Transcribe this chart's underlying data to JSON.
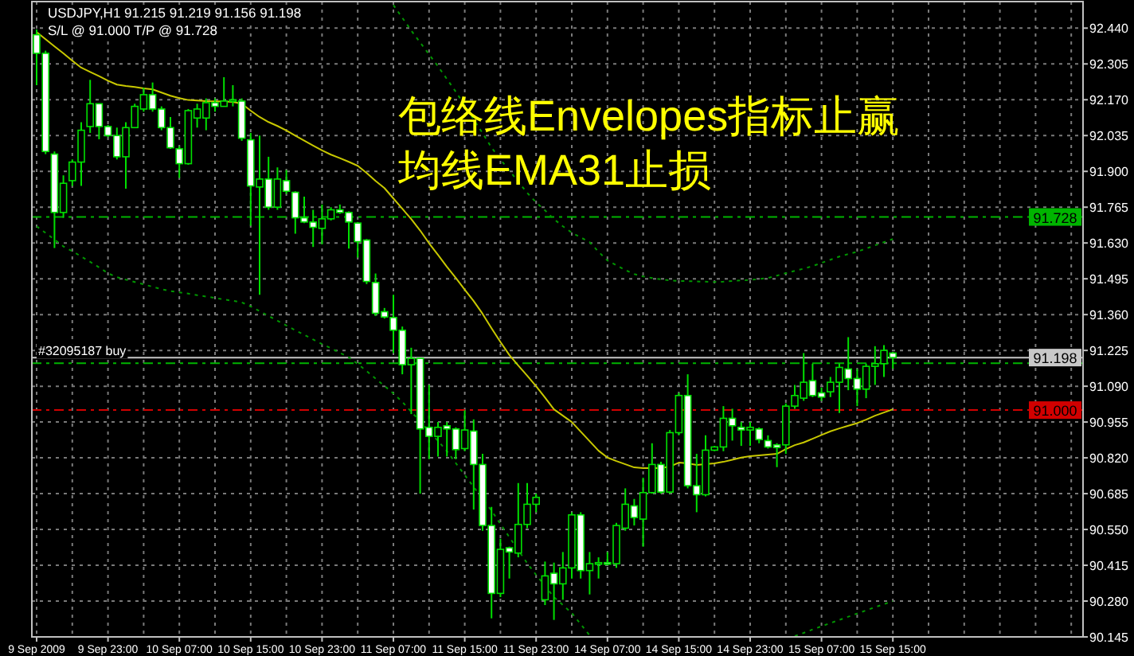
{
  "chart_data": {
    "type": "candlestick",
    "title": "USDJPY,H1  91.215 91.219 91.156 91.198",
    "subtitle": "S/L @ 91.000   T/P @ 91.728",
    "annotations": [
      "包络线Envelopes指标止赢",
      "均线EMA31止损",
      {
        "text": "#32095187 buy",
        "x": "9 Sep 2009",
        "y": 91.177
      }
    ],
    "categories": [
      "9 Sep 2009",
      null,
      null,
      null,
      null,
      null,
      null,
      null,
      "9 Sep 23:00",
      null,
      null,
      null,
      null,
      null,
      null,
      null,
      "10 Sep 07:00",
      null,
      null,
      null,
      null,
      null,
      null,
      null,
      "10 Sep 15:00",
      null,
      null,
      null,
      null,
      null,
      null,
      null,
      "10 Sep 23:00",
      null,
      null,
      null,
      null,
      null,
      null,
      null,
      "11 Sep 07:00",
      null,
      null,
      null,
      null,
      null,
      null,
      null,
      "11 Sep 15:00",
      null,
      null,
      null,
      null,
      null,
      null,
      null,
      "11 Sep 23:00",
      null,
      null,
      null,
      null,
      null,
      null,
      null,
      "14 Sep 07:00",
      null,
      null,
      null,
      null,
      null,
      null,
      null,
      "14 Sep 15:00",
      null,
      null,
      null,
      null,
      null,
      null,
      null,
      "14 Sep 23:00",
      null,
      null,
      null,
      null,
      null,
      null,
      null,
      "15 Sep 07:00",
      null,
      null,
      null,
      null,
      null,
      null,
      null,
      "15 Sep 15:00"
    ],
    "ohlc": [
      [
        92.415,
        92.435,
        92.225,
        92.345
      ],
      [
        92.345,
        92.355,
        91.965,
        91.975
      ],
      [
        91.965,
        91.975,
        91.611,
        91.745
      ],
      [
        91.745,
        91.885,
        91.725,
        91.855
      ],
      [
        91.865,
        91.945,
        91.845,
        91.935
      ],
      [
        91.935,
        92.085,
        91.845,
        92.055
      ],
      [
        92.069,
        92.245,
        92.045,
        92.155
      ],
      [
        92.155,
        92.155,
        92.021,
        92.069
      ],
      [
        92.069,
        92.075,
        92.029,
        92.035
      ],
      [
        92.035,
        92.065,
        91.945,
        91.955
      ],
      [
        91.955,
        92.085,
        91.835,
        92.065
      ],
      [
        92.065,
        92.155,
        92.065,
        92.145
      ],
      [
        92.135,
        92.215,
        92.125,
        92.189
      ],
      [
        92.189,
        92.235,
        92.125,
        92.135
      ],
      [
        92.135,
        92.145,
        92.055,
        92.065
      ],
      [
        92.065,
        92.105,
        91.985,
        91.989
      ],
      [
        91.985,
        91.995,
        91.875,
        91.929
      ],
      [
        91.929,
        92.135,
        91.925,
        92.129
      ],
      [
        92.101,
        92.155,
        92.065,
        92.135
      ],
      [
        92.101,
        92.175,
        92.055,
        92.159
      ],
      [
        92.159,
        92.175,
        92.125,
        92.145
      ],
      [
        92.145,
        92.255,
        92.145,
        92.165
      ],
      [
        92.165,
        92.225,
        92.145,
        92.17
      ],
      [
        92.165,
        92.175,
        92.015,
        92.025
      ],
      [
        92.019,
        92.045,
        91.695,
        91.845
      ],
      [
        91.841,
        92.035,
        91.435,
        91.871
      ],
      [
        91.871,
        91.955,
        91.755,
        91.765
      ],
      [
        91.765,
        91.915,
        91.755,
        91.871
      ],
      [
        91.865,
        91.905,
        91.815,
        91.825
      ],
      [
        91.821,
        91.825,
        91.665,
        91.725
      ],
      [
        91.725,
        91.805,
        91.705,
        91.709
      ],
      [
        91.709,
        91.755,
        91.615,
        91.689
      ],
      [
        91.685,
        91.775,
        91.625,
        91.721
      ],
      [
        91.721,
        91.765,
        91.715,
        91.755
      ],
      [
        91.755,
        91.775,
        91.74,
        91.745
      ],
      [
        91.745,
        91.749,
        91.609,
        91.709
      ],
      [
        91.705,
        91.709,
        91.575,
        91.635
      ],
      [
        91.641,
        91.645,
        91.475,
        91.485
      ],
      [
        91.481,
        91.515,
        91.355,
        91.365
      ],
      [
        91.371,
        91.385,
        91.345,
        91.351
      ],
      [
        91.349,
        91.435,
        91.215,
        91.301
      ],
      [
        91.301,
        91.315,
        91.135,
        91.171
      ],
      [
        91.171,
        91.235,
        90.985,
        91.195
      ],
      [
        91.195,
        91.195,
        90.685,
        90.929
      ],
      [
        90.935,
        91.095,
        90.815,
        90.901
      ],
      [
        90.901,
        90.955,
        90.825,
        90.935
      ],
      [
        90.941,
        90.955,
        90.825,
        90.929
      ],
      [
        90.929,
        90.935,
        90.815,
        90.851
      ],
      [
        90.855,
        90.999,
        90.845,
        90.925
      ],
      [
        90.921,
        90.965,
        90.625,
        90.795
      ],
      [
        90.795,
        90.835,
        90.545,
        90.565
      ],
      [
        90.565,
        90.635,
        90.215,
        90.309
      ],
      [
        90.309,
        90.515,
        90.295,
        90.475
      ],
      [
        90.481,
        90.485,
        90.365,
        90.465
      ],
      [
        90.461,
        90.725,
        90.445,
        90.569
      ],
      [
        90.569,
        90.725,
        90.555,
        90.645
      ],
      [
        90.645,
        90.685,
        90.615,
        90.671
      ],
      [
        90.285,
        90.429,
        90.265,
        90.375
      ],
      [
        90.385,
        90.425,
        90.209,
        90.345
      ],
      [
        90.345,
        90.465,
        90.285,
        90.405
      ],
      [
        90.405,
        90.615,
        90.365,
        90.605
      ],
      [
        90.605,
        90.615,
        90.365,
        90.395
      ],
      [
        90.395,
        90.465,
        90.305,
        90.421
      ],
      [
        90.421,
        90.445,
        90.365,
        90.425
      ],
      [
        90.425,
        90.465,
        90.415,
        90.421
      ],
      [
        90.421,
        90.575,
        90.405,
        90.565
      ],
      [
        90.555,
        90.705,
        90.545,
        90.645
      ],
      [
        90.639,
        90.665,
        90.565,
        90.595
      ],
      [
        90.589,
        90.745,
        90.485,
        90.689
      ],
      [
        90.689,
        90.875,
        90.685,
        90.795
      ],
      [
        90.795,
        90.805,
        90.685,
        90.691
      ],
      [
        90.691,
        90.925,
        90.685,
        90.915
      ],
      [
        90.915,
        91.065,
        90.905,
        91.055
      ],
      [
        91.055,
        91.135,
        90.705,
        90.715
      ],
      [
        90.715,
        90.835,
        90.615,
        90.681
      ],
      [
        90.681,
        90.905,
        90.675,
        90.849
      ],
      [
        90.849,
        90.865,
        90.845,
        90.861
      ],
      [
        90.861,
        91.015,
        90.845,
        90.969
      ],
      [
        90.969,
        91.005,
        90.885,
        90.941
      ],
      [
        90.935,
        90.955,
        90.865,
        90.925
      ],
      [
        90.925,
        90.955,
        90.865,
        90.935
      ],
      [
        90.929,
        90.935,
        90.875,
        90.889
      ],
      [
        90.885,
        90.905,
        90.855,
        90.861
      ],
      [
        90.869,
        90.875,
        90.785,
        90.859
      ],
      [
        90.869,
        91.025,
        90.835,
        91.015
      ],
      [
        91.015,
        91.095,
        91.005,
        91.055
      ],
      [
        91.045,
        91.215,
        91.035,
        91.105
      ],
      [
        91.111,
        91.175,
        91.049,
        91.055
      ],
      [
        91.065,
        91.085,
        91.035,
        91.049
      ],
      [
        91.069,
        91.125,
        91.049,
        91.105
      ],
      [
        91.105,
        91.175,
        90.989,
        91.161
      ],
      [
        91.155,
        91.275,
        91.075,
        91.119
      ],
      [
        91.119,
        91.155,
        91.015,
        91.079
      ],
      [
        91.079,
        91.175,
        91.045,
        91.165
      ],
      [
        91.165,
        91.241,
        91.095,
        91.175
      ],
      [
        91.175,
        91.245,
        91.125,
        91.225
      ],
      [
        91.215,
        91.219,
        91.156,
        91.198
      ]
    ],
    "series": [
      {
        "type": "line",
        "color": "#c8c800",
        "line_style": "solid",
        "values": [
          92.425,
          92.398,
          92.371,
          92.345,
          92.317,
          92.291,
          92.275,
          92.259,
          92.242,
          92.227,
          92.222,
          92.218,
          92.213,
          92.209,
          92.197,
          92.185,
          92.176,
          92.169,
          92.167,
          92.165,
          92.164,
          92.163,
          92.162,
          92.155,
          92.129,
          92.105,
          92.086,
          92.071,
          92.054,
          92.035,
          92.016,
          91.997,
          91.979,
          91.963,
          91.95,
          91.936,
          91.921,
          91.894,
          91.864,
          91.837,
          91.798,
          91.759,
          91.72,
          91.677,
          91.629,
          91.585,
          91.54,
          91.498,
          91.454,
          91.411,
          91.363,
          91.309,
          91.257,
          91.208,
          91.168,
          91.13,
          91.09,
          91.047,
          91.003,
          90.979,
          90.955,
          90.919,
          90.883,
          90.847,
          90.821,
          90.808,
          90.796,
          90.784,
          90.781,
          90.781,
          90.781,
          90.787,
          90.802,
          90.799,
          90.793,
          90.796,
          90.799,
          90.805,
          90.813,
          90.821,
          90.826,
          90.829,
          90.832,
          90.835,
          90.853,
          90.868,
          90.878,
          90.892,
          90.906,
          90.92,
          90.931,
          90.941,
          90.951,
          90.964,
          90.979,
          90.991,
          91.003
        ]
      },
      {
        "type": "line",
        "color": "#009600",
        "line_style": "dotted",
        "values": [
          null,
          null,
          null,
          null,
          null,
          null,
          null,
          null,
          null,
          null,
          null,
          null,
          null,
          null,
          null,
          null,
          null,
          null,
          null,
          null,
          null,
          null,
          null,
          null,
          null,
          null,
          null,
          null,
          null,
          null,
          null,
          null,
          null,
          null,
          null,
          null,
          null,
          null,
          null,
          null,
          92.527,
          92.479,
          92.431,
          92.386,
          92.341,
          92.296,
          92.248,
          92.2,
          92.149,
          92.095,
          92.044,
          91.99,
          91.945,
          91.903,
          91.861,
          91.819,
          91.783,
          91.753,
          91.72,
          91.693,
          91.669,
          91.651,
          91.633,
          91.597,
          91.564,
          91.546,
          91.528,
          91.513,
          91.504,
          91.498,
          91.493,
          91.489,
          91.487,
          91.486,
          91.485,
          91.484,
          91.483,
          91.484,
          91.487,
          91.489,
          91.491,
          91.494,
          91.498,
          91.507,
          91.516,
          91.525,
          91.533,
          91.543,
          91.555,
          91.567,
          91.579,
          91.588,
          91.597,
          91.609,
          91.621,
          91.633,
          91.645
        ]
      },
      {
        "type": "line",
        "color": "#009600",
        "line_style": "dotted",
        "values": [
          91.693,
          91.668,
          91.643,
          91.617,
          91.599,
          91.579,
          91.559,
          91.538,
          91.516,
          91.501,
          91.492,
          91.483,
          91.474,
          91.465,
          91.456,
          91.449,
          91.444,
          91.439,
          91.433,
          91.428,
          91.423,
          91.417,
          91.412,
          91.406,
          91.391,
          91.373,
          91.355,
          91.337,
          91.319,
          91.301,
          91.284,
          91.266,
          91.249,
          91.233,
          91.216,
          91.199,
          91.174,
          91.147,
          91.119,
          91.091,
          91.063,
          91.031,
          90.994,
          90.957,
          90.92,
          90.884,
          90.845,
          90.8,
          90.755,
          90.71,
          90.665,
          90.621,
          90.571,
          90.521,
          90.472,
          90.423,
          90.379,
          90.337,
          90.295,
          90.265,
          90.235,
          90.193,
          90.151,
          null,
          null,
          null,
          null,
          null,
          null,
          null,
          null,
          null,
          null,
          null,
          null,
          null,
          null,
          null,
          null,
          null,
          null,
          null,
          null,
          null,
          null,
          90.148,
          90.16,
          90.173,
          90.185,
          90.197,
          90.209,
          90.221,
          90.233,
          90.245,
          90.257,
          90.268,
          90.28
        ]
      }
    ],
    "ylim": [
      90.145,
      92.54
    ],
    "yticks": [
      {
        "value": 92.44,
        "label": "92.440"
      },
      92.305,
      {
        "value": 92.17,
        "label": "92.170"
      },
      92.035,
      {
        "value": 91.9,
        "label": "91.900"
      },
      91.765,
      {
        "value": 91.63,
        "label": "91.630"
      },
      91.495,
      {
        "value": 91.36,
        "label": "91.360"
      },
      91.225,
      {
        "value": 91.09,
        "label": "91.090"
      },
      90.955,
      {
        "value": 90.82,
        "label": "90.820"
      },
      90.685,
      {
        "value": 90.55,
        "label": "90.550"
      },
      90.415,
      {
        "value": 90.28,
        "label": "90.280"
      },
      90.145
    ],
    "grid": true,
    "ref_lines": [
      {
        "axis": "y",
        "value": 91.728,
        "label": "91.728",
        "color": "#00b400",
        "line_style": "dashed"
      },
      {
        "axis": "y",
        "value": 91.198,
        "label": "91.198",
        "color": "#c8c8c8",
        "line_style": "solid"
      },
      {
        "axis": "y",
        "value": 91.177,
        "color": "#00b400",
        "line_style": "dashed"
      },
      {
        "axis": "y",
        "value": 91.0,
        "label": "91.000",
        "color": "#d20000",
        "line_style": "dashed"
      }
    ]
  }
}
